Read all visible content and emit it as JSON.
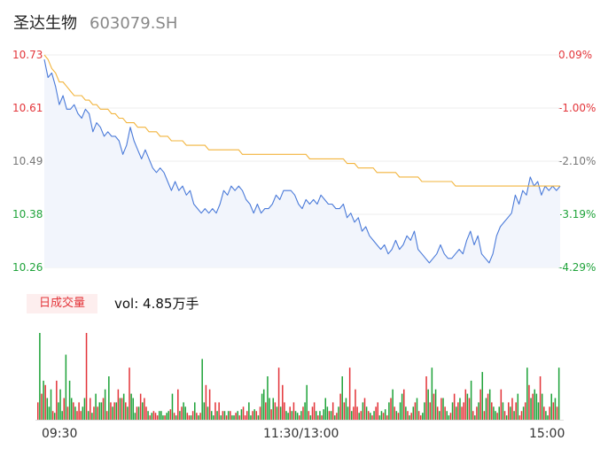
{
  "header": {
    "name": "圣达生物",
    "code": "603079.SH"
  },
  "price_axis": {
    "left_ticks": [
      "10.73",
      "10.61",
      "10.49",
      "10.38",
      "10.26"
    ],
    "right_ticks": [
      "0.09%",
      "-1.00%",
      "-2.10%",
      "-3.19%",
      "-4.29%"
    ]
  },
  "volume_panel": {
    "label": "日成交量",
    "vol_text": "vol: 4.85万手"
  },
  "time_axis": {
    "labels": [
      "09:30",
      "11:30/13:00",
      "15:00"
    ]
  },
  "colors": {
    "price_line": "#4a7ad9",
    "avg_line": "#f2b43c",
    "area_fill": "#f2f5fc",
    "up": "#e3353a",
    "down": "#1fa33a",
    "neutral_text": "#777777",
    "grid": "#eeeeee"
  },
  "chart_data": [
    {
      "type": "line",
      "title": "",
      "xlabel": "",
      "ylabel": "",
      "ylim": [
        10.26,
        10.73
      ],
      "x_ticks": [
        "09:30",
        "11:30/13:00",
        "15:00"
      ],
      "series": [
        {
          "name": "",
          "values": [
            10.72,
            10.68,
            10.69,
            10.66,
            10.62,
            10.64,
            10.61,
            10.61,
            10.62,
            10.6,
            10.59,
            10.61,
            10.6,
            10.56,
            10.58,
            10.57,
            10.55,
            10.56,
            10.55,
            10.55,
            10.54,
            10.51,
            10.53,
            10.57,
            10.54,
            10.52,
            10.5,
            10.52,
            10.5,
            10.48,
            10.47,
            10.48,
            10.47,
            10.45,
            10.43,
            10.45,
            10.43,
            10.44,
            10.42,
            10.43,
            10.4,
            10.39,
            10.38,
            10.39,
            10.38,
            10.39,
            10.38,
            10.4,
            10.43,
            10.42,
            10.44,
            10.43,
            10.44,
            10.43,
            10.41,
            10.4,
            10.38,
            10.4,
            10.38,
            10.39,
            10.39,
            10.4,
            10.42,
            10.41,
            10.43,
            10.43,
            10.43,
            10.42,
            10.4,
            10.39,
            10.41,
            10.4,
            10.41,
            10.4,
            10.42,
            10.41,
            10.4,
            10.4,
            10.39,
            10.39,
            10.4,
            10.37,
            10.38,
            10.36,
            10.37,
            10.34,
            10.35,
            10.33,
            10.32,
            10.31,
            10.3,
            10.31,
            10.29,
            10.3,
            10.32,
            10.3,
            10.31,
            10.33,
            10.32,
            10.34,
            10.3,
            10.29,
            10.28,
            10.27,
            10.28,
            10.29,
            10.31,
            10.29,
            10.28,
            10.28,
            10.29,
            10.3,
            10.29,
            10.32,
            10.34,
            10.31,
            10.33,
            10.29,
            10.28,
            10.27,
            10.29,
            10.33,
            10.35,
            10.36,
            10.37,
            10.38,
            10.42,
            10.4,
            10.43,
            10.42,
            10.46,
            10.44,
            10.45,
            10.42,
            10.44,
            10.43,
            10.44,
            10.43,
            10.44
          ],
          "color": "#4a7ad9"
        },
        {
          "name": "",
          "values": [
            10.73,
            10.72,
            10.7,
            10.69,
            10.67,
            10.67,
            10.66,
            10.65,
            10.64,
            10.64,
            10.64,
            10.63,
            10.63,
            10.62,
            10.62,
            10.61,
            10.61,
            10.61,
            10.6,
            10.6,
            10.59,
            10.59,
            10.58,
            10.58,
            10.58,
            10.57,
            10.57,
            10.57,
            10.56,
            10.56,
            10.56,
            10.55,
            10.55,
            10.55,
            10.54,
            10.54,
            10.54,
            10.54,
            10.53,
            10.53,
            10.53,
            10.53,
            10.53,
            10.53,
            10.52,
            10.52,
            10.52,
            10.52,
            10.52,
            10.52,
            10.52,
            10.52,
            10.52,
            10.51,
            10.51,
            10.51,
            10.51,
            10.51,
            10.51,
            10.51,
            10.51,
            10.51,
            10.51,
            10.51,
            10.51,
            10.51,
            10.51,
            10.51,
            10.51,
            10.51,
            10.51,
            10.5,
            10.5,
            10.5,
            10.5,
            10.5,
            10.5,
            10.5,
            10.5,
            10.5,
            10.5,
            10.49,
            10.49,
            10.49,
            10.48,
            10.48,
            10.48,
            10.48,
            10.48,
            10.47,
            10.47,
            10.47,
            10.47,
            10.47,
            10.47,
            10.46,
            10.46,
            10.46,
            10.46,
            10.46,
            10.46,
            10.45,
            10.45,
            10.45,
            10.45,
            10.45,
            10.45,
            10.45,
            10.45,
            10.45,
            10.44,
            10.44,
            10.44,
            10.44,
            10.44,
            10.44,
            10.44,
            10.44,
            10.44,
            10.44,
            10.44,
            10.44,
            10.44,
            10.44,
            10.44,
            10.44,
            10.44,
            10.44,
            10.44,
            10.44,
            10.44,
            10.44,
            10.44,
            10.44,
            10.44,
            10.44,
            10.44,
            10.44,
            10.44
          ],
          "color": "#f2b43c"
        }
      ]
    },
    {
      "type": "bar",
      "title": "",
      "xlabel": "",
      "ylabel": "",
      "values": [
        20,
        100,
        30,
        45,
        40,
        25,
        15,
        35,
        10,
        8,
        45,
        20,
        35,
        10,
        25,
        75,
        15,
        45,
        25,
        20,
        15,
        10,
        20,
        10,
        15,
        25,
        100,
        10,
        25,
        8,
        15,
        30,
        15,
        20,
        20,
        25,
        35,
        10,
        50,
        20,
        15,
        20,
        20,
        35,
        25,
        25,
        30,
        20,
        15,
        60,
        30,
        25,
        8,
        15,
        15,
        30,
        20,
        25,
        15,
        10,
        5,
        8,
        10,
        8,
        5,
        10,
        10,
        5,
        5,
        8,
        10,
        12,
        30,
        8,
        5,
        35,
        10,
        15,
        20,
        15,
        8,
        5,
        5,
        10,
        20,
        8,
        5,
        8,
        70,
        20,
        40,
        15,
        35,
        10,
        5,
        20,
        10,
        20,
        5,
        10,
        10,
        5,
        10,
        10,
        5,
        5,
        8,
        10,
        5,
        12,
        15,
        5,
        10,
        20,
        5,
        10,
        12,
        10,
        5,
        15,
        30,
        35,
        20,
        50,
        25,
        12,
        25,
        20,
        15,
        60,
        15,
        40,
        20,
        10,
        8,
        15,
        10,
        20,
        10,
        8,
        5,
        10,
        15,
        20,
        40,
        10,
        5,
        15,
        20,
        10,
        5,
        10,
        5,
        12,
        25,
        15,
        10,
        10,
        20,
        5,
        8,
        15,
        30,
        50,
        20,
        25,
        15,
        60,
        10,
        15,
        35,
        15,
        8,
        10,
        20,
        25,
        15,
        10,
        8,
        5,
        10,
        15,
        20,
        5,
        10,
        8,
        12,
        5,
        20,
        25,
        35,
        15,
        10,
        8,
        20,
        30,
        35,
        15,
        10,
        5,
        8,
        15,
        20,
        25,
        10,
        5,
        8,
        20,
        50,
        35,
        20,
        60,
        30,
        35,
        15,
        10,
        25,
        25,
        15,
        10,
        5,
        8,
        20,
        30,
        15,
        20,
        25,
        15,
        20,
        35,
        30,
        25,
        45,
        10,
        5,
        15,
        20,
        35,
        55,
        10,
        25,
        30,
        35,
        20,
        15,
        10,
        8,
        15,
        35,
        20,
        10,
        5,
        20,
        15,
        25,
        10,
        20,
        30,
        5,
        10,
        15,
        20,
        60,
        40,
        25,
        30,
        35,
        30,
        20,
        50,
        30,
        15,
        10,
        5,
        15,
        30,
        20,
        25,
        15,
        60
      ],
      "up_down": "rgrgrgggrgrgggrgrggrgrrrggrgrgrgrggrgrgrgrgrgrgrgrgggrgrgrrgrgrrrgggrggrgrgrgrggrrgrgrgrggrgrggrgrgrgrgrggrgrgrrrggrgrgrggrggrgrgrgrrggrgrggrgrggrgrrgrgrgggrgrgrgrgrggrgrrrgrgrgrgrgrrggrgrgrgrgrggrgrgrgrgrrggrgrgrgrgrgrggrgrgrgrrrgrgrgrgrgrgrgrggrgrgrgrgrgrgrrgrgrgrgggrgrggrgrgrgrgrgrrr"
    }
  ]
}
